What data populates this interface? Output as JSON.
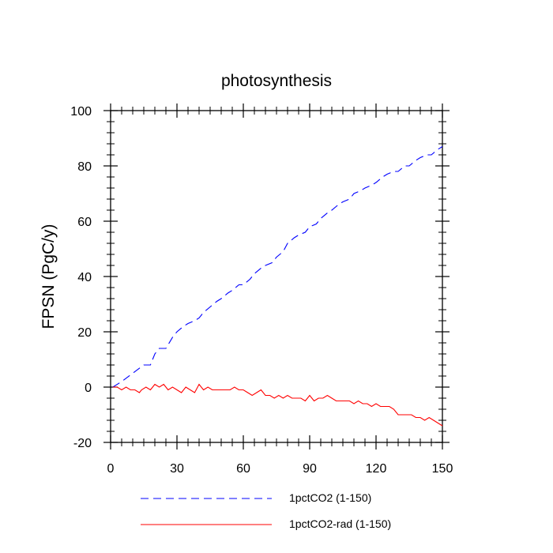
{
  "chart_data": {
    "type": "line",
    "title": "photosynthesis",
    "xlabel": "",
    "ylabel": "FPSN  (PgC/y)",
    "xlim": [
      0,
      150
    ],
    "ylim": [
      -20,
      100
    ],
    "x_ticks": [
      0,
      30,
      60,
      90,
      120,
      150
    ],
    "x_tick_labels": [
      "0",
      "30",
      "60",
      "90",
      "120",
      "150"
    ],
    "y_ticks": [
      -20,
      0,
      20,
      40,
      60,
      80,
      100
    ],
    "y_tick_labels": [
      "-20",
      "0",
      "20",
      "40",
      "60",
      "80",
      "100"
    ],
    "grid": false,
    "legend_position": "bottom",
    "series": [
      {
        "name": "1pctCO2 (1-150)",
        "color": "#0000ff",
        "dash": "dashed",
        "x": [
          1,
          5,
          10,
          15,
          18,
          20,
          22,
          25,
          28,
          30,
          33,
          35,
          38,
          40,
          42,
          45,
          48,
          50,
          53,
          55,
          58,
          60,
          63,
          65,
          68,
          70,
          73,
          75,
          78,
          80,
          83,
          85,
          88,
          90,
          93,
          95,
          98,
          100,
          103,
          105,
          108,
          110,
          113,
          115,
          118,
          120,
          123,
          125,
          128,
          130,
          133,
          135,
          138,
          140,
          143,
          145,
          148,
          150
        ],
        "y": [
          0,
          2,
          5,
          8,
          8,
          12,
          14,
          14,
          18,
          20,
          22,
          23,
          24,
          25,
          27,
          29,
          31,
          32,
          34,
          35,
          37,
          37,
          39,
          41,
          43,
          44,
          45,
          47,
          49,
          52,
          54,
          55,
          56,
          58,
          59,
          61,
          63,
          64,
          66,
          67,
          68,
          70,
          71,
          72,
          73,
          74,
          76,
          77,
          78,
          78,
          80,
          80,
          82,
          83,
          84,
          84,
          86,
          87
        ]
      },
      {
        "name": "1pctCO2-rad (1-150)",
        "color": "#ff0000",
        "dash": "solid",
        "x": [
          1,
          3,
          5,
          7,
          9,
          11,
          13,
          14,
          16,
          18,
          20,
          22,
          24,
          26,
          28,
          30,
          32,
          34,
          36,
          38,
          40,
          42,
          44,
          46,
          48,
          50,
          52,
          54,
          56,
          58,
          60,
          62,
          64,
          66,
          68,
          70,
          72,
          74,
          76,
          78,
          80,
          82,
          84,
          86,
          88,
          90,
          92,
          94,
          96,
          98,
          100,
          102,
          104,
          106,
          108,
          110,
          112,
          114,
          116,
          118,
          120,
          122,
          124,
          126,
          128,
          130,
          132,
          134,
          136,
          138,
          140,
          142,
          144,
          146,
          148,
          150
        ],
        "y": [
          0,
          0,
          -1,
          0,
          -1,
          -1,
          -2,
          -1,
          0,
          -1,
          1,
          0,
          1,
          -1,
          0,
          -1,
          -2,
          0,
          -1,
          -2,
          1,
          -1,
          0,
          -1,
          -1,
          -1,
          -1,
          -1,
          0,
          -1,
          -1,
          -2,
          -3,
          -2,
          -1,
          -3,
          -3,
          -4,
          -3,
          -4,
          -3,
          -4,
          -4,
          -4,
          -5,
          -3,
          -5,
          -4,
          -4,
          -3,
          -4,
          -5,
          -5,
          -5,
          -5,
          -6,
          -5,
          -6,
          -6,
          -7,
          -6,
          -7,
          -7,
          -7,
          -8,
          -10,
          -10,
          -10,
          -10,
          -11,
          -11,
          -12,
          -11,
          -12,
          -13,
          -14
        ]
      }
    ]
  }
}
